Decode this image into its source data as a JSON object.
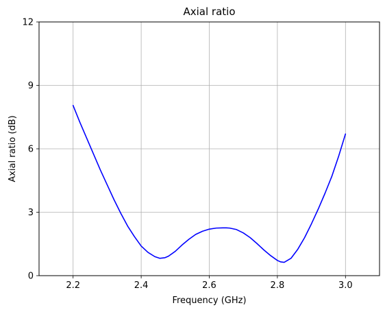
{
  "chart_data": {
    "type": "line",
    "title": "Axial ratio",
    "xlabel": "Frequency (GHz)",
    "ylabel": "Axial ratio (dB)",
    "xlim": [
      2.1,
      3.1
    ],
    "ylim": [
      0,
      12
    ],
    "xticks": [
      2.2,
      2.4,
      2.6,
      2.8,
      3.0
    ],
    "xtick_labels": [
      "2.2",
      "2.4",
      "2.6",
      "2.8",
      "3.0"
    ],
    "yticks": [
      0,
      3,
      6,
      9,
      12
    ],
    "ytick_labels": [
      "0",
      "3",
      "6",
      "9",
      "12"
    ],
    "grid": true,
    "series": [
      {
        "color": "#0000ff",
        "x": [
          2.2,
          2.22,
          2.24,
          2.26,
          2.28,
          2.3,
          2.32,
          2.34,
          2.36,
          2.38,
          2.4,
          2.42,
          2.44,
          2.455,
          2.47,
          2.48,
          2.5,
          2.52,
          2.54,
          2.56,
          2.58,
          2.6,
          2.62,
          2.64,
          2.65,
          2.66,
          2.68,
          2.7,
          2.72,
          2.74,
          2.76,
          2.78,
          2.8,
          2.81,
          2.82,
          2.84,
          2.86,
          2.88,
          2.9,
          2.92,
          2.94,
          2.96,
          2.98,
          3.0
        ],
        "y": [
          8.05,
          7.25,
          6.5,
          5.75,
          5.0,
          4.3,
          3.6,
          2.95,
          2.35,
          1.85,
          1.4,
          1.1,
          0.9,
          0.82,
          0.85,
          0.92,
          1.15,
          1.45,
          1.72,
          1.95,
          2.1,
          2.2,
          2.25,
          2.26,
          2.26,
          2.25,
          2.18,
          2.02,
          1.8,
          1.52,
          1.22,
          0.95,
          0.72,
          0.65,
          0.63,
          0.82,
          1.25,
          1.8,
          2.45,
          3.15,
          3.9,
          4.7,
          5.65,
          6.7
        ]
      }
    ]
  }
}
